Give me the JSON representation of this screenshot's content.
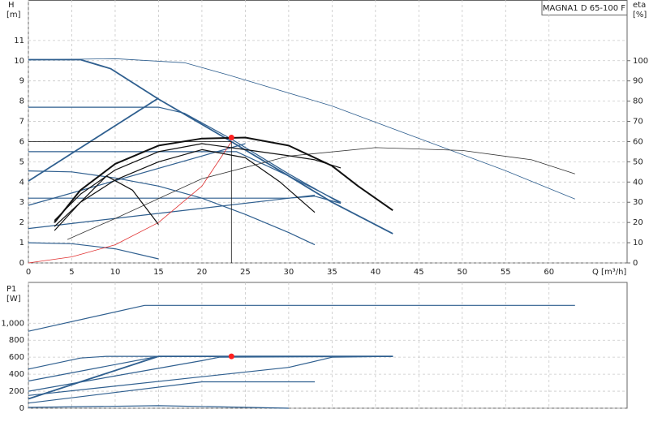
{
  "chart_data": [
    {
      "type": "line",
      "title": "MAGNA1 D 65-100 F",
      "y_label": "H",
      "y_unit": "[m]",
      "y2_label": "eta",
      "y2_unit": "[%]",
      "x_label": "Q [m³/h]",
      "xlim": [
        0,
        69
      ],
      "ylim": [
        0,
        13
      ],
      "y2lim": [
        0,
        130
      ],
      "grid": true,
      "xticks": [
        0,
        5,
        10,
        15,
        20,
        25,
        30,
        35,
        40,
        45,
        50,
        55,
        60
      ],
      "yticks": [
        0,
        1,
        2,
        3,
        4,
        5,
        6,
        7,
        8,
        9,
        10,
        11
      ],
      "y2ticks": [
        0,
        10,
        20,
        30,
        40,
        50,
        60,
        70,
        80,
        90,
        100
      ],
      "series": [
        {
          "color": "#2f5f8f",
          "width": 1.8,
          "x": [
            0,
            6,
            9.5,
            15,
            23,
            30,
            35,
            42
          ],
          "values": [
            10.05,
            10.05,
            9.6,
            8.1,
            6.1,
            4.3,
            3.0,
            1.45
          ]
        },
        {
          "color": "#2f5f8f",
          "width": 1.2,
          "x": [
            0,
            15,
            18,
            23.5,
            30,
            36
          ],
          "values": [
            7.7,
            7.7,
            7.4,
            6.1,
            4.4,
            2.95
          ]
        },
        {
          "color": "#2f5f8f",
          "width": 1.2,
          "x": [
            0,
            24,
            30,
            36
          ],
          "values": [
            5.5,
            5.5,
            4.3,
            3.0
          ]
        },
        {
          "color": "#2f5f8f",
          "width": 1.2,
          "x": [
            0,
            5,
            10,
            15,
            20,
            25,
            30,
            33
          ],
          "values": [
            4.55,
            4.5,
            4.2,
            3.8,
            3.2,
            2.4,
            1.5,
            0.9
          ]
        },
        {
          "color": "#2f5f8f",
          "width": 1.2,
          "x": [
            0,
            30,
            33,
            36
          ],
          "values": [
            3.2,
            3.2,
            3.3,
            2.95
          ]
        },
        {
          "color": "#2f5f8f",
          "width": 1.2,
          "x": [
            0,
            5,
            10,
            15
          ],
          "values": [
            1.0,
            0.95,
            0.7,
            0.2
          ]
        },
        {
          "color": "#2f5f8f",
          "width": 1.8,
          "x": [
            0,
            15
          ],
          "values": [
            4.05,
            8.15
          ]
        },
        {
          "color": "#2f5f8f",
          "width": 1.2,
          "x": [
            0,
            25
          ],
          "values": [
            2.85,
            5.9
          ]
        },
        {
          "color": "#2f5f8f",
          "width": 1.2,
          "x": [
            0,
            33
          ],
          "values": [
            1.7,
            3.35
          ]
        },
        {
          "color": "#2f5f8f",
          "width": 0.8,
          "axis": "y2",
          "x": [
            0,
            10,
            18,
            23,
            35,
            45,
            55,
            63
          ],
          "values": [
            100.4,
            101,
            99,
            93,
            77.6,
            61.6,
            45.6,
            31.6
          ]
        },
        {
          "color": "#333333",
          "width": 0.8,
          "axis": "y2",
          "x": [
            4.5,
            10,
            20,
            30,
            40,
            50,
            58,
            63
          ],
          "values": [
            11.6,
            22,
            41.6,
            52.8,
            57,
            55.6,
            51,
            44
          ]
        },
        {
          "color": "#e03030",
          "width": 0.8,
          "axis": "y2",
          "x": [
            0,
            5,
            10,
            15,
            20,
            23.4
          ],
          "values": [
            0,
            3,
            9,
            20,
            38,
            60
          ]
        },
        {
          "color": "#111111",
          "width": 2,
          "x": [
            3,
            6,
            10,
            15,
            20,
            25,
            30,
            35,
            38,
            42
          ],
          "values": [
            2.0,
            3.6,
            4.9,
            5.8,
            6.15,
            6.2,
            5.8,
            4.8,
            3.8,
            2.6
          ]
        },
        {
          "color": "#111111",
          "width": 1.2,
          "x": [
            3,
            6,
            10,
            15,
            20,
            25,
            30,
            33,
            36
          ],
          "values": [
            2.1,
            3.4,
            4.6,
            5.5,
            5.9,
            5.6,
            5.3,
            5.1,
            4.7
          ]
        },
        {
          "color": "#111111",
          "width": 1.2,
          "x": [
            3,
            6,
            10,
            15,
            20,
            25,
            29,
            33
          ],
          "values": [
            1.8,
            3.0,
            4.1,
            5.0,
            5.6,
            5.2,
            4.0,
            2.5
          ]
        },
        {
          "color": "#111111",
          "width": 1.2,
          "x": [
            3,
            6,
            9,
            12,
            15
          ],
          "values": [
            1.6,
            3.0,
            4.3,
            3.6,
            1.9
          ]
        },
        {
          "color": "#111111",
          "width": 0.8,
          "x": [
            0,
            23.4,
            23.4
          ],
          "values": [
            6.0,
            6.0,
            0
          ]
        }
      ],
      "duty_point": {
        "x": 23.4,
        "y": 6.2,
        "color": "#ff2020"
      }
    },
    {
      "type": "line",
      "y_label": "P1",
      "y_unit": "[W]",
      "xlim": [
        0,
        69
      ],
      "ylim": [
        0,
        1480
      ],
      "grid": true,
      "yticks": [
        0,
        200,
        400,
        600,
        800,
        {
          "value": 1000,
          "label": "1,000"
        }
      ],
      "series": [
        {
          "color": "#2f5f8f",
          "width": 1.2,
          "x": [
            0,
            13.4,
            63
          ],
          "values": [
            905,
            1210,
            1210
          ]
        },
        {
          "color": "#2f5f8f",
          "width": 1.2,
          "x": [
            0,
            6,
            9,
            42
          ],
          "values": [
            460,
            590,
            610,
            610
          ]
        },
        {
          "color": "#2f5f8f",
          "width": 1.2,
          "x": [
            0,
            15,
            42
          ],
          "values": [
            320,
            610,
            610
          ]
        },
        {
          "color": "#2f5f8f",
          "width": 1.8,
          "x": [
            0,
            15,
            42
          ],
          "values": [
            110,
            610,
            610
          ]
        },
        {
          "color": "#2f5f8f",
          "width": 1.2,
          "x": [
            0,
            20,
            22,
            42
          ],
          "values": [
            200,
            560,
            600,
            610
          ]
        },
        {
          "color": "#2f5f8f",
          "width": 1.2,
          "x": [
            0,
            20,
            33
          ],
          "values": [
            60,
            310,
            310
          ]
        },
        {
          "color": "#2f5f8f",
          "width": 1.2,
          "x": [
            0,
            30,
            35,
            42
          ],
          "values": [
            150,
            480,
            600,
            610
          ]
        },
        {
          "color": "#2f5f8f",
          "width": 1.2,
          "x": [
            0,
            15,
            30
          ],
          "values": [
            10,
            30,
            0
          ]
        }
      ],
      "duty_point": {
        "x": 23.4,
        "y": 610,
        "color": "#ff2020"
      }
    }
  ]
}
